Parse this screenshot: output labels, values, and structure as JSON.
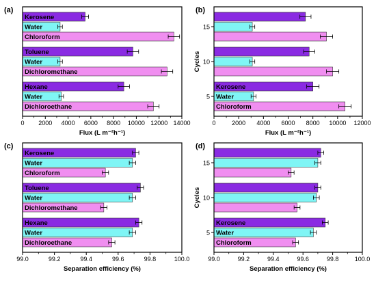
{
  "colors": {
    "purple": "#8a2be2",
    "cyan": "#7ff5f5",
    "pink": "#f08ef0"
  },
  "chart_data": [
    {
      "panel": "(a)",
      "type": "bar",
      "orientation": "horizontal",
      "xlabel": "Flux (L m⁻²h⁻¹)",
      "ylabel": "",
      "xlim": [
        0,
        14000
      ],
      "xticks": [
        "0",
        "2000",
        "4000",
        "6000",
        "8000",
        "10000",
        "12000",
        "14000"
      ],
      "groups": [
        {
          "label": "",
          "bars": [
            {
              "label": "Kerosene",
              "value": 5500,
              "error": 300,
              "color": "purple"
            },
            {
              "label": "Water",
              "value": 3300,
              "error": 200,
              "color": "cyan"
            },
            {
              "label": "Chloroform",
              "value": 13300,
              "error": 500,
              "color": "pink"
            }
          ]
        },
        {
          "label": "",
          "bars": [
            {
              "label": "Toluene",
              "value": 9700,
              "error": 500,
              "color": "purple"
            },
            {
              "label": "Water",
              "value": 3300,
              "error": 200,
              "color": "cyan"
            },
            {
              "label": "Dichloromethane",
              "value": 12700,
              "error": 500,
              "color": "pink"
            }
          ]
        },
        {
          "label": "",
          "bars": [
            {
              "label": "Hexane",
              "value": 8900,
              "error": 500,
              "color": "purple"
            },
            {
              "label": "Water",
              "value": 3400,
              "error": 200,
              "color": "cyan"
            },
            {
              "label": "Dichloroethane",
              "value": 11500,
              "error": 500,
              "color": "pink"
            }
          ]
        }
      ]
    },
    {
      "panel": "(b)",
      "type": "bar",
      "orientation": "horizontal",
      "xlabel": "Flux (L m⁻²h⁻¹)",
      "ylabel": "Cycles",
      "xlim": [
        0,
        12000
      ],
      "xticks": [
        "0",
        "2000",
        "4000",
        "6000",
        "8000",
        "10000",
        "12000"
      ],
      "groups": [
        {
          "label": "15",
          "bars": [
            {
              "label": "",
              "value": 7400,
              "error": 450,
              "color": "purple"
            },
            {
              "label": "",
              "value": 3100,
              "error": 200,
              "color": "cyan"
            },
            {
              "label": "",
              "value": 9100,
              "error": 500,
              "color": "pink"
            }
          ]
        },
        {
          "label": "10",
          "bars": [
            {
              "label": "",
              "value": 7700,
              "error": 450,
              "color": "purple"
            },
            {
              "label": "",
              "value": 3100,
              "error": 200,
              "color": "cyan"
            },
            {
              "label": "",
              "value": 9600,
              "error": 500,
              "color": "pink"
            }
          ]
        },
        {
          "label": "5",
          "bars": [
            {
              "label": "Kerosene",
              "value": 8000,
              "error": 500,
              "color": "purple"
            },
            {
              "label": "Water",
              "value": 3200,
              "error": 200,
              "color": "cyan"
            },
            {
              "label": "Chloroform",
              "value": 10600,
              "error": 500,
              "color": "pink"
            }
          ]
        }
      ]
    },
    {
      "panel": "(c)",
      "type": "bar",
      "orientation": "horizontal",
      "xlabel": "Separation efficiency (%)",
      "ylabel": "",
      "xlim": [
        99.0,
        100.0
      ],
      "xticks": [
        "99.0",
        "99.2",
        "99.4",
        "99.6",
        "99.8",
        "100.0"
      ],
      "groups": [
        {
          "label": "",
          "bars": [
            {
              "label": "Kerosene",
              "value": 99.71,
              "error": 0.02,
              "color": "purple"
            },
            {
              "label": "Water",
              "value": 99.69,
              "error": 0.02,
              "color": "cyan"
            },
            {
              "label": "Chloroform",
              "value": 99.52,
              "error": 0.02,
              "color": "pink"
            }
          ]
        },
        {
          "label": "",
          "bars": [
            {
              "label": "Toluene",
              "value": 99.74,
              "error": 0.02,
              "color": "purple"
            },
            {
              "label": "Water",
              "value": 99.69,
              "error": 0.02,
              "color": "cyan"
            },
            {
              "label": "Dichloromethane",
              "value": 99.51,
              "error": 0.02,
              "color": "pink"
            }
          ]
        },
        {
          "label": "",
          "bars": [
            {
              "label": "Hexane",
              "value": 99.73,
              "error": 0.02,
              "color": "purple"
            },
            {
              "label": "Water",
              "value": 99.69,
              "error": 0.02,
              "color": "cyan"
            },
            {
              "label": "Dichloroethane",
              "value": 99.56,
              "error": 0.02,
              "color": "pink"
            }
          ]
        }
      ]
    },
    {
      "panel": "(d)",
      "type": "bar",
      "orientation": "horizontal",
      "xlabel": "Separation efficiency (%)",
      "ylabel": "Cycles",
      "xlim": [
        99.0,
        100.0
      ],
      "xticks": [
        "99.0",
        "99.2",
        "99.4",
        "99.6",
        "99.8",
        "100.0"
      ],
      "groups": [
        {
          "label": "15",
          "bars": [
            {
              "label": "",
              "value": 99.72,
              "error": 0.02,
              "color": "purple"
            },
            {
              "label": "",
              "value": 99.7,
              "error": 0.02,
              "color": "cyan"
            },
            {
              "label": "",
              "value": 99.52,
              "error": 0.02,
              "color": "pink"
            }
          ]
        },
        {
          "label": "10",
          "bars": [
            {
              "label": "",
              "value": 99.7,
              "error": 0.02,
              "color": "purple"
            },
            {
              "label": "",
              "value": 99.69,
              "error": 0.02,
              "color": "cyan"
            },
            {
              "label": "",
              "value": 99.56,
              "error": 0.02,
              "color": "pink"
            }
          ]
        },
        {
          "label": "5",
          "bars": [
            {
              "label": "Kerosene",
              "value": 99.75,
              "error": 0.02,
              "color": "purple"
            },
            {
              "label": "Water",
              "value": 99.67,
              "error": 0.02,
              "color": "cyan"
            },
            {
              "label": "Chloroform",
              "value": 99.55,
              "error": 0.02,
              "color": "pink"
            }
          ]
        }
      ]
    }
  ]
}
